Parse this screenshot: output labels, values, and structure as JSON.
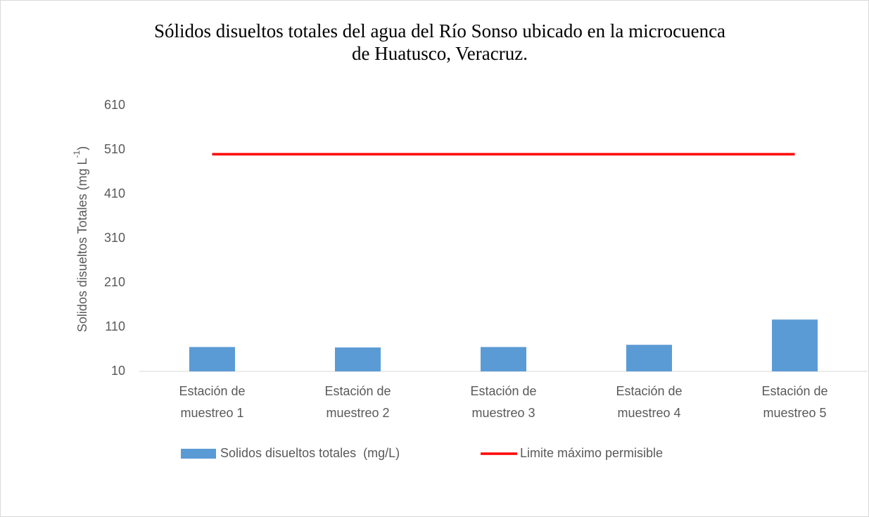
{
  "chart_data": {
    "type": "bar",
    "title": [
      "Sólidos disueltos totales del agua del Río Sonso ubicado en la microcuenca",
      "de Huatusco, Veracruz."
    ],
    "y_label": [
      "Solidos disueltos Totales (mg L",
      "-1",
      ")"
    ],
    "categories": [
      "Estación de muestreo 1",
      "Estación de muestreo 2",
      "Estación de muestreo 3",
      "Estación de muestreo 4",
      "Estación de muestreo 5"
    ],
    "series": [
      {
        "name": "Solidos disueltos totales  (mg/L)",
        "type": "bar",
        "color": "#5b9bd5",
        "values": [
          65,
          64,
          65,
          70,
          127
        ]
      },
      {
        "name": "Limite máximo permisible",
        "type": "line",
        "color": "#ff0000",
        "values": [
          500,
          500,
          500,
          500,
          500
        ]
      }
    ],
    "ylim": [
      10,
      610
    ],
    "yticks": [
      10,
      110,
      210,
      310,
      410,
      510,
      610
    ],
    "grid": false,
    "legend": "bottom"
  }
}
